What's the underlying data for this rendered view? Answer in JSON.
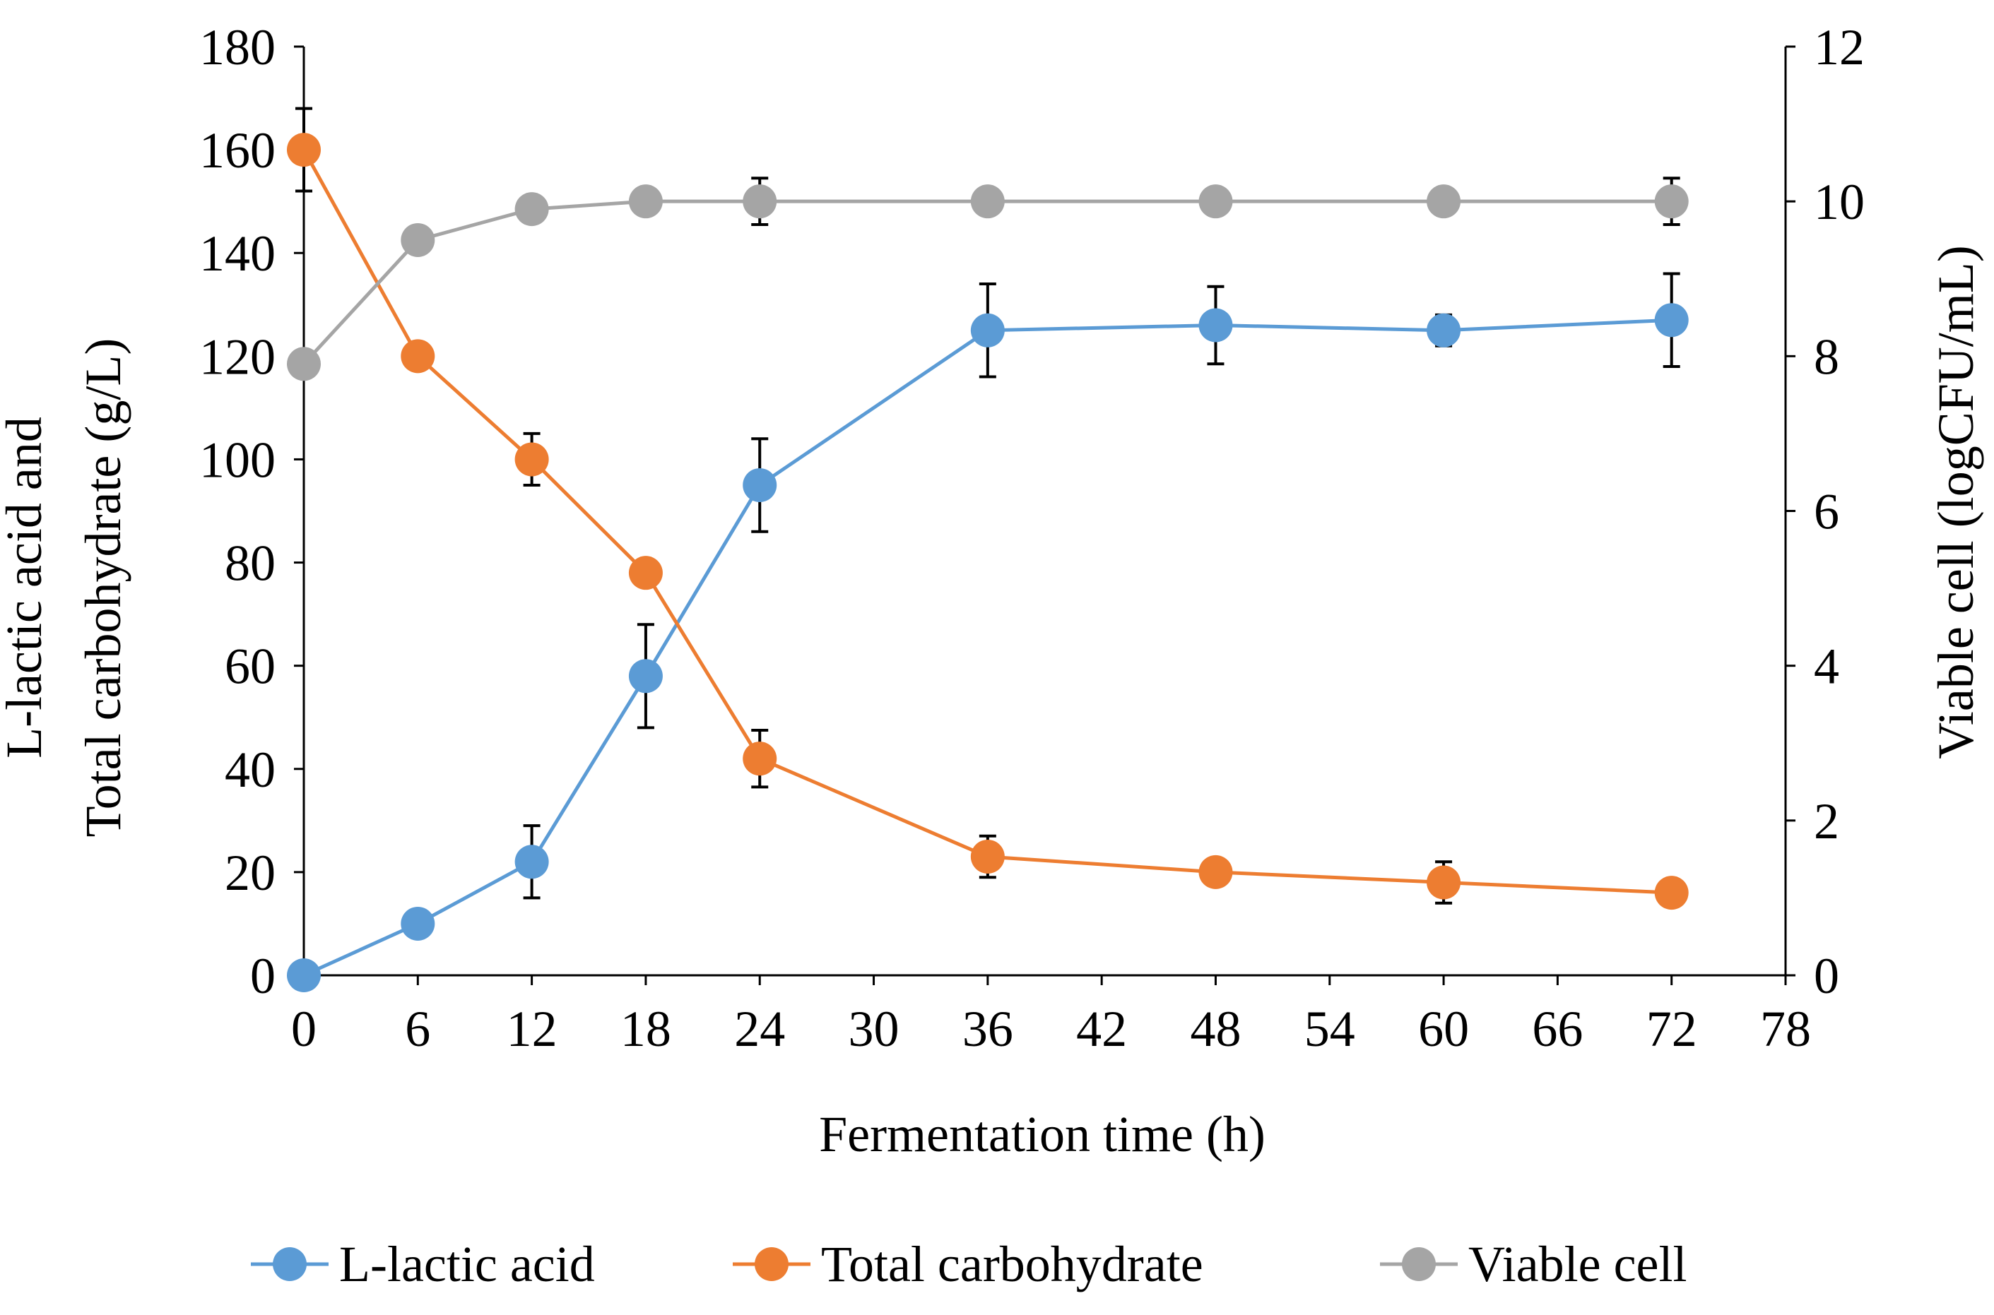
{
  "chart_data": {
    "type": "line",
    "title": "",
    "xlabel": "Fermentation time (h)",
    "ylabel_left": [
      "L-lactic acid and",
      "Total carbohydrate (g/L)"
    ],
    "ylabel_right": "Viable cell (logCFU/mL)",
    "x_ticks": [
      0,
      6,
      12,
      18,
      24,
      30,
      36,
      42,
      48,
      54,
      60,
      66,
      72,
      78
    ],
    "y_left_ticks": [
      0,
      20,
      40,
      60,
      80,
      100,
      120,
      140,
      160,
      180
    ],
    "y_right_ticks": [
      0,
      2,
      4,
      6,
      8,
      10,
      12
    ],
    "xlim": [
      0,
      78
    ],
    "ylim_left": [
      0,
      180
    ],
    "ylim_right": [
      0,
      12
    ],
    "legend_position": "bottom",
    "series": [
      {
        "name": "L-lactic acid",
        "axis": "left",
        "color": "#5B9BD5",
        "x": [
          0,
          6,
          12,
          18,
          24,
          36,
          48,
          60,
          72
        ],
        "y": [
          0,
          10,
          22,
          58,
          95,
          125,
          126,
          125,
          127
        ],
        "err": [
          0,
          0,
          7,
          10,
          9,
          9,
          7.5,
          3,
          9
        ]
      },
      {
        "name": "Total carbohydrate",
        "axis": "left",
        "color": "#ED7D31",
        "x": [
          0,
          6,
          12,
          18,
          24,
          36,
          48,
          60,
          72
        ],
        "y": [
          160,
          120,
          100,
          78,
          42,
          23,
          20,
          18,
          16
        ],
        "err": [
          8,
          0,
          5,
          0,
          5.5,
          4,
          0,
          4,
          0
        ]
      },
      {
        "name": "Viable cell",
        "axis": "right",
        "color": "#A5A5A5",
        "x": [
          0,
          6,
          12,
          18,
          24,
          36,
          48,
          60,
          72
        ],
        "y": [
          7.9,
          9.5,
          9.9,
          10,
          10,
          10,
          10,
          10,
          10
        ],
        "err": [
          0,
          0,
          0,
          0,
          0.3,
          0,
          0,
          0,
          0.3
        ]
      }
    ]
  }
}
